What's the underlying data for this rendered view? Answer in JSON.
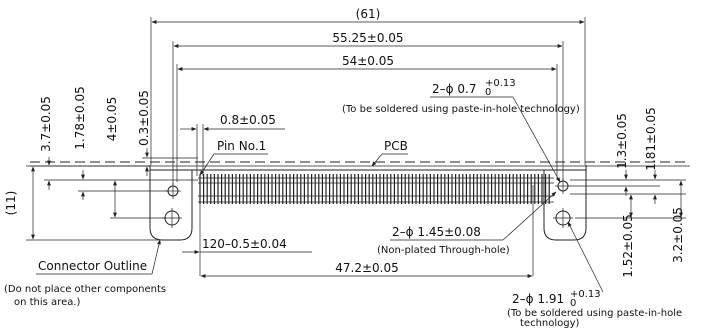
{
  "dimensions": {
    "overall": "(61)",
    "outer_holes": "55.25±0.05",
    "inner_holes": "54±0.05",
    "pitch": "0.8±0.05",
    "pin_span": "47.2±0.05",
    "pin_count_pitch": "120–0.5±0.04",
    "height_overall": "(11)",
    "v_3_7": "3.7±0.05",
    "v_1_78": "1.78±0.05",
    "v_4": "4±0.05",
    "v_0_3": "0.3±0.05",
    "v_1_3": "1.3±0.05",
    "v_1_81": "1.81±0.05",
    "v_1_52": "1.52±0.05",
    "v_3_2": "3.2±0.05"
  },
  "holes": {
    "small_main": "2–ϕ 0.7",
    "small_tol_upper": "+0.13",
    "small_tol_lower": "0",
    "small_note": "(To be soldered using paste-in-hole technology)",
    "plated_main": "2–ϕ 1.45±0.08",
    "plated_note": "(Non-plated Through-hole)",
    "large_main": "2–ϕ 1.91",
    "large_tol_upper": "+0.13",
    "large_tol_lower": "0",
    "large_note_line1": "(To be soldered using paste-in-hole",
    "large_note_line2": "technology)"
  },
  "labels": {
    "pin1": "Pin No.1",
    "pcb": "PCB",
    "outline": "Connector Outline",
    "outline_note_line1": "(Do not place other components",
    "outline_note_line2": "on this area.)"
  }
}
